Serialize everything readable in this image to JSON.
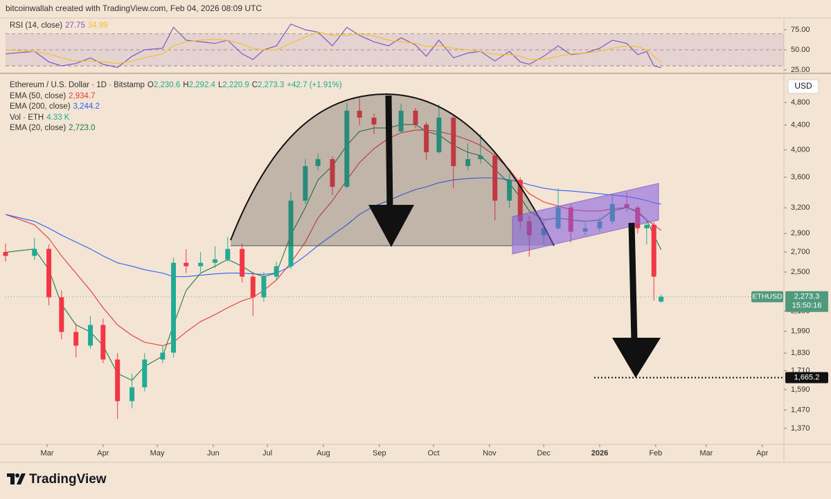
{
  "header": "bitcoinwallah created with TradingView.com, Feb 04, 2026 08:09 UTC",
  "brand": "TradingView",
  "chart_data": [
    {
      "type": "line",
      "title": "RSI (14, close)",
      "x": [
        36,
        52,
        60,
        67,
        75,
        83,
        90,
        98,
        106,
        113,
        123,
        129,
        136,
        144,
        152,
        159,
        167,
        173,
        179,
        186,
        194,
        202,
        209,
        217,
        225,
        232,
        240,
        248,
        255,
        263,
        269,
        276,
        284,
        292,
        299,
        307,
        315,
        321,
        326,
        334,
        342,
        349,
        357,
        365,
        372,
        380,
        386,
        391,
        395,
        399
      ],
      "series": [
        {
          "color": "#7e57c2",
          "values": [
            45,
            48,
            35,
            30,
            33,
            40,
            32,
            28,
            42,
            50,
            52,
            78,
            62,
            60,
            58,
            62,
            45,
            38,
            50,
            55,
            82,
            75,
            72,
            55,
            78,
            68,
            60,
            55,
            65,
            56,
            42,
            62,
            40,
            46,
            48,
            36,
            48,
            35,
            32,
            42,
            55,
            44,
            46,
            52,
            62,
            58,
            44,
            48,
            30,
            27.75
          ]
        },
        {
          "color": "#f2c12e",
          "values": [
            50,
            48,
            45,
            40,
            36,
            36,
            35,
            33,
            36,
            40,
            45,
            55,
            60,
            62,
            63,
            62,
            57,
            52,
            50,
            50,
            58,
            66,
            72,
            68,
            68,
            70,
            67,
            62,
            60,
            58,
            54,
            55,
            52,
            50,
            48,
            44,
            44,
            42,
            38,
            38,
            42,
            45,
            46,
            48,
            52,
            55,
            54,
            50,
            42,
            34.99
          ]
        }
      ],
      "levels": [
        70,
        50,
        30
      ],
      "band_color": "#7e57c2",
      "xlim": [
        36,
        467
      ],
      "ylim": [
        22.4,
        87.9
      ],
      "yticks": [
        {
          "value": 75,
          "label": "75.00"
        },
        {
          "value": 50,
          "label": "50.00"
        },
        {
          "value": 25,
          "label": "25.00"
        }
      ]
    },
    {
      "type": "candlestick",
      "title": "Ethereum / U.S. Dollar · 1D · Bitstamp",
      "x": [
        36,
        52,
        60,
        67,
        75,
        83,
        90,
        98,
        106,
        113,
        123,
        129,
        136,
        144,
        152,
        159,
        167,
        173,
        179,
        186,
        194,
        202,
        209,
        217,
        225,
        232,
        240,
        248,
        255,
        263,
        269,
        276,
        284,
        292,
        299,
        307,
        315,
        321,
        326,
        334,
        342,
        349,
        357,
        365,
        372,
        380,
        386,
        391,
        395,
        399
      ],
      "open": [
        2700,
        2660,
        2732,
        2268,
        1985,
        1883,
        2039,
        1785,
        1521,
        1604,
        1785,
        1833,
        2590,
        2556,
        2590,
        2625,
        2732,
        2456,
        2268,
        2456,
        2556,
        3290,
        3758,
        3859,
        3469,
        4650,
        4528,
        4409,
        4293,
        4650,
        4409,
        3963,
        4528,
        3758,
        3859,
        3911,
        3290,
        3563,
        3038,
        2881,
        2958,
        3204,
        2919,
        2958,
        3038,
        3247,
        3204,
        2958,
        2998,
        2230.6
      ],
      "high": [
        2790,
        2850,
        2780,
        2330,
        2050,
        2110,
        2090,
        1830,
        1690,
        1830,
        1880,
        2640,
        2730,
        2700,
        2760,
        2860,
        2790,
        2500,
        2500,
        2600,
        3400,
        3860,
        3940,
        3900,
        4790,
        4880,
        4600,
        4480,
        4770,
        4700,
        4450,
        4760,
        4560,
        4100,
        4250,
        3950,
        3650,
        3600,
        3100,
        3050,
        3450,
        3250,
        3020,
        3080,
        3380,
        3400,
        3230,
        3050,
        3030,
        2292.4
      ],
      "low": [
        2600,
        2620,
        2200,
        1930,
        1800,
        1860,
        1760,
        1420,
        1480,
        1580,
        1760,
        1800,
        2490,
        2500,
        2540,
        2600,
        2400,
        2110,
        2230,
        2420,
        2530,
        3250,
        3700,
        3360,
        3450,
        4400,
        4250,
        4200,
        4270,
        4350,
        3850,
        3940,
        3450,
        3700,
        3800,
        3050,
        3200,
        2950,
        2650,
        2780,
        2940,
        2800,
        2880,
        2920,
        3000,
        3150,
        2900,
        2780,
        2240,
        2220.9
      ],
      "close": [
        2660,
        2732,
        2268,
        1985,
        1883,
        2039,
        1785,
        1521,
        1604,
        1785,
        1833,
        2590,
        2556,
        2590,
        2625,
        2732,
        2456,
        2268,
        2456,
        2556,
        3290,
        3758,
        3859,
        3469,
        4650,
        4528,
        4409,
        4293,
        4650,
        4409,
        3963,
        4528,
        3758,
        3859,
        3911,
        3290,
        3563,
        3038,
        2881,
        2958,
        3204,
        2919,
        2958,
        3038,
        3247,
        3204,
        2958,
        2998,
        2456,
        2273.3
      ],
      "up_color": "#22ab94",
      "down_color": "#f23645",
      "ohlc_labels": [
        "O",
        "H",
        "L",
        "C"
      ],
      "last_labels": [
        "2,230.6",
        "2,292.4",
        "2,220.9",
        "2,273.3"
      ],
      "change_label": "+42.7 (+1.91%)",
      "overlays": [
        {
          "name": "EMA (50, close)",
          "color": "#e53935",
          "last_label": "2,934.7",
          "values": [
            3120,
            2998,
            2843,
            2660,
            2489,
            2329,
            2179,
            2039,
            1959,
            1908,
            1883,
            1908,
            1985,
            2066,
            2122,
            2179,
            2238,
            2268,
            2329,
            2424,
            2590,
            2805,
            3079,
            3290,
            3563,
            3808,
            4017,
            4180,
            4271,
            4316,
            4316,
            4293,
            4237,
            4158,
            4070,
            3911,
            3708,
            3516,
            3379,
            3273,
            3221,
            3178,
            3162,
            3162,
            3187,
            3204,
            3162,
            3054,
            2998,
            2934.7
          ]
        },
        {
          "name": "EMA (200, close)",
          "color": "#2962ff",
          "last_label": "3,244.2",
          "values": [
            3120,
            3038,
            2958,
            2881,
            2805,
            2732,
            2660,
            2590,
            2556,
            2522,
            2489,
            2456,
            2456,
            2469,
            2482,
            2489,
            2489,
            2482,
            2476,
            2489,
            2556,
            2660,
            2768,
            2881,
            2998,
            3120,
            3221,
            3290,
            3361,
            3433,
            3469,
            3525,
            3563,
            3582,
            3591,
            3591,
            3563,
            3534,
            3497,
            3451,
            3424,
            3415,
            3397,
            3379,
            3361,
            3343,
            3317,
            3290,
            3264,
            3244.2
          ]
        },
        {
          "name": "EMA (20, close)",
          "color": "#1e7a4a",
          "last_label": "2,723.0",
          "values": [
            2696,
            2732,
            2522,
            2208,
            2039,
            1985,
            1883,
            1692,
            1648,
            1738,
            1809,
            2039,
            2329,
            2489,
            2556,
            2625,
            2556,
            2489,
            2456,
            2489,
            2881,
            3204,
            3563,
            3758,
            4070,
            4293,
            4351,
            4351,
            4409,
            4409,
            4293,
            4237,
            4070,
            3963,
            3911,
            3708,
            3516,
            3334,
            3162,
            3054,
            3079,
            3054,
            3038,
            3054,
            3162,
            3204,
            3145,
            3054,
            2881,
            2723.0
          ]
        }
      ],
      "volume_legend": {
        "name": "Vol · ETH",
        "color": "#22ab94",
        "value_label": "4.33 K"
      },
      "currency": "USD",
      "price_tag": {
        "symbol": "ETHUSD",
        "value": 2273.3,
        "label": "2,273.3",
        "countdown": "15:50:16",
        "color": "#4f9a7c"
      },
      "target": {
        "value": 1665.2,
        "label": "1,665.2"
      },
      "log_scale": true,
      "xlim": [
        36,
        467
      ],
      "ylim": [
        1295,
        5340
      ],
      "yticks": [
        {
          "value": 4800,
          "label": "4,800"
        },
        {
          "value": 4400,
          "label": "4,400"
        },
        {
          "value": 4000,
          "label": "4,000"
        },
        {
          "value": 3600,
          "label": "3,600"
        },
        {
          "value": 3200,
          "label": "3,200"
        },
        {
          "value": 2900,
          "label": "2,900"
        },
        {
          "value": 2700,
          "label": "2,700"
        },
        {
          "value": 2500,
          "label": "2,500"
        },
        {
          "value": 2150,
          "label": "2,150"
        },
        {
          "value": 1990,
          "label": "1,990"
        },
        {
          "value": 1830,
          "label": "1,830"
        },
        {
          "value": 1710,
          "label": "1,710"
        },
        {
          "value": 1590,
          "label": "1,590"
        },
        {
          "value": 1470,
          "label": "1,470"
        },
        {
          "value": 1370,
          "label": "1,370"
        }
      ],
      "xticks": [
        {
          "value": 59,
          "label": "Mar"
        },
        {
          "value": 90,
          "label": "Apr"
        },
        {
          "value": 120,
          "label": "May"
        },
        {
          "value": 151,
          "label": "Jun"
        },
        {
          "value": 181,
          "label": "Jul"
        },
        {
          "value": 212,
          "label": "Aug"
        },
        {
          "value": 243,
          "label": "Sep"
        },
        {
          "value": 273,
          "label": "Oct"
        },
        {
          "value": 304,
          "label": "Nov"
        },
        {
          "value": 334,
          "label": "Dec"
        },
        {
          "value": 365,
          "label": "2026"
        },
        {
          "value": 396,
          "label": "Feb"
        },
        {
          "value": 424,
          "label": "Mar"
        },
        {
          "value": 455,
          "label": "Apr"
        }
      ]
    }
  ]
}
